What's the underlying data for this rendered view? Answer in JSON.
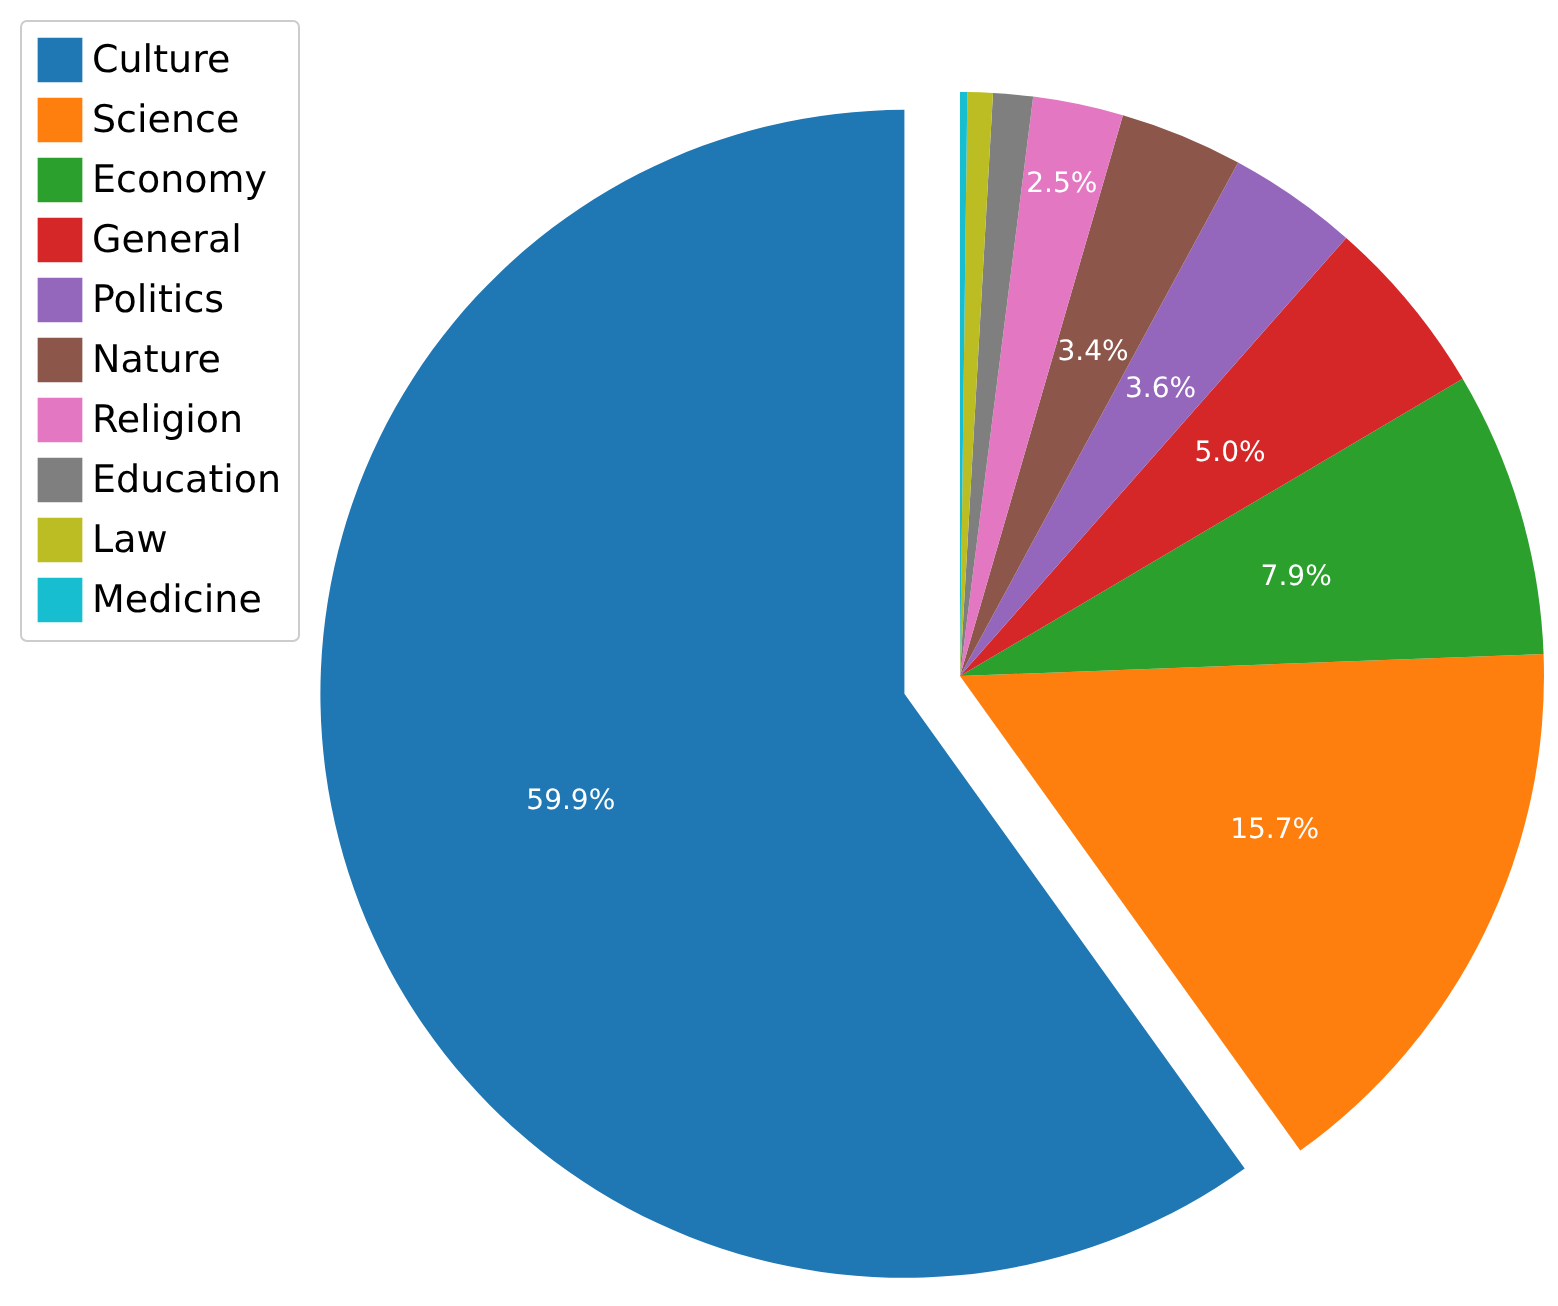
{
  "chart_data": {
    "type": "pie",
    "categories": [
      "Culture",
      "Science",
      "Economy",
      "General",
      "Politics",
      "Nature",
      "Religion",
      "Education",
      "Law",
      "Medicine"
    ],
    "values": [
      59.9,
      15.7,
      7.9,
      5.0,
      3.6,
      3.4,
      2.5,
      1.1,
      0.7,
      0.2
    ],
    "colors": [
      "#1f77b4",
      "#ff7f0e",
      "#2ca02c",
      "#d62728",
      "#9467bd",
      "#8c564b",
      "#e377c2",
      "#7f7f7f",
      "#bcbd22",
      "#17becf"
    ],
    "value_labels": [
      "59.9%",
      "15.7%",
      "7.9%",
      "5.0%",
      "3.6%",
      "3.4%",
      "2.5%",
      null,
      null,
      null
    ],
    "legend": "top left"
  }
}
